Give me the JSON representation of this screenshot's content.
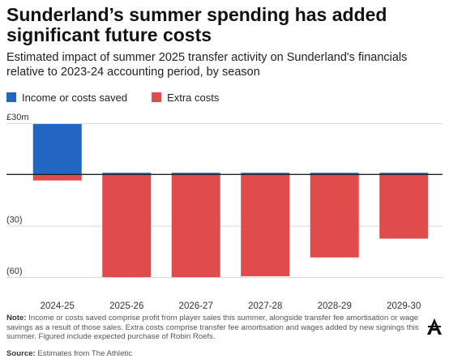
{
  "title": "Sunderland’s summer spending has added significant future costs",
  "subtitle": "Estimated impact of summer 2025 transfer activity on Sunderland's financials relative to 2023-24 accounting period, by season",
  "legend": {
    "positive_label": "Income or costs saved",
    "negative_label": "Extra costs"
  },
  "colors": {
    "positive": "#2366c2",
    "negative": "#e04b4b",
    "axis": "#222222",
    "grid": "#d9d9d9"
  },
  "note": {
    "label": "Note:",
    "text": "Income or costs saved comprise profit from player sales this summer, alongside transfer fee amortisation or wage savings as a result of those sales. Extra costs comprise transfer fee amortisation and wages added by new signings this summer. Figured include expected purchase of Robin Roefs."
  },
  "source": {
    "label": "Source:",
    "text": "Estimates from The Athletic"
  },
  "logo": "the-athletic-logo",
  "chart_data": {
    "type": "bar",
    "stacked": true,
    "categories": [
      "2024-25",
      "2025-26",
      "2026-27",
      "2027-28",
      "2028-29",
      "2029-30"
    ],
    "series": [
      {
        "name": "Income or costs saved",
        "color": "#2366c2",
        "values": [
          29.5,
          1.0,
          1.0,
          1.0,
          1.0,
          1.0
        ]
      },
      {
        "name": "Extra costs",
        "color": "#e04b4b",
        "values": [
          -3.5,
          -60,
          -60,
          -59.5,
          -48.5,
          -37.5
        ]
      }
    ],
    "ylim": [
      -60,
      30
    ],
    "yticks": [
      {
        "value": 30,
        "label": "£30m"
      },
      {
        "value": 0,
        "label": ""
      },
      {
        "value": -30,
        "label": "(30)"
      },
      {
        "value": -60,
        "label": "(60)"
      }
    ],
    "xlabel": "",
    "ylabel": "",
    "grid": true,
    "legend_position": "top-left"
  }
}
